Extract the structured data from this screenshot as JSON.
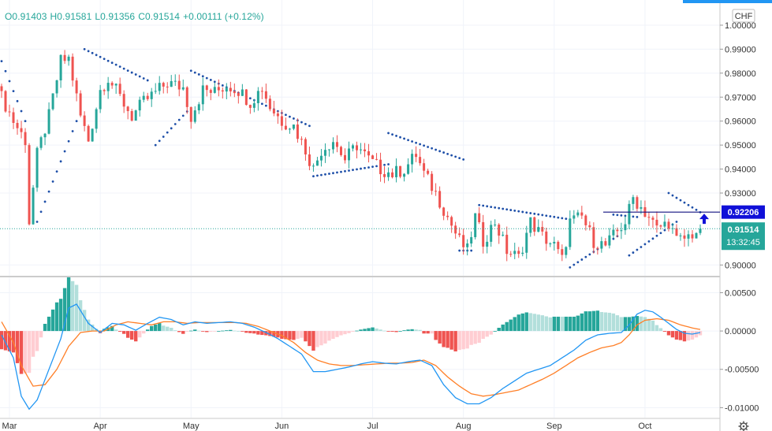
{
  "ohlc": {
    "open": "O0.91403",
    "high": "H0.91581",
    "low": "L0.91356",
    "close": "C0.91514",
    "change": "+0.00111 (+0.12%)"
  },
  "currency_label": "CHF",
  "price_labels": {
    "level_price": "0.92206",
    "last_price": "0.91514",
    "countdown": "13:32:45"
  },
  "colors": {
    "up": "#26a69a",
    "down": "#ef5350",
    "sar": "#1e4fa8",
    "level_badge": "#1010d8",
    "macd_line": "#2196f3",
    "signal_line": "#ff7f27",
    "hist_up_strong": "#26a69a",
    "hist_up_weak": "#b2dfdb",
    "hist_down_strong": "#ef5350",
    "hist_down_weak": "#ffcdd2",
    "toolbar_accent": "#2196f3"
  },
  "icons": {
    "settings": "gear-icon",
    "signal": "up-arrow-icon"
  },
  "chart_data": [
    {
      "type": "candlestick",
      "title": "",
      "ylim": [
        0.8955,
        1.0105
      ],
      "yticks": [
        "1.00000",
        "0.99000",
        "0.98000",
        "0.97000",
        "0.96000",
        "0.95000",
        "0.94000",
        "0.93000",
        "0.90000"
      ],
      "ytick_values": [
        1.0,
        0.99,
        0.98,
        0.97,
        0.96,
        0.95,
        0.94,
        0.93,
        0.9
      ],
      "xticks": [
        "Mar",
        "Apr",
        "May",
        "Jun",
        "Jul",
        "Aug",
        "Sep",
        "Oct"
      ],
      "xtick_bar_index": [
        2,
        25,
        48,
        71,
        94,
        117,
        140,
        163
      ],
      "bar_count": 178,
      "close_path": [
        [
          0,
          0.97
        ],
        [
          3,
          0.96
        ],
        [
          6,
          0.952
        ],
        [
          7,
          0.918
        ],
        [
          9,
          0.946
        ],
        [
          12,
          0.962
        ],
        [
          15,
          0.985
        ],
        [
          17,
          0.986
        ],
        [
          20,
          0.962
        ],
        [
          22,
          0.952
        ],
        [
          25,
          0.973
        ],
        [
          27,
          0.978
        ],
        [
          30,
          0.97
        ],
        [
          33,
          0.962
        ],
        [
          36,
          0.968
        ],
        [
          39,
          0.972
        ],
        [
          42,
          0.976
        ],
        [
          46,
          0.974
        ],
        [
          48,
          0.962
        ],
        [
          51,
          0.973
        ],
        [
          54,
          0.972
        ],
        [
          57,
          0.975
        ],
        [
          60,
          0.973
        ],
        [
          63,
          0.968
        ],
        [
          66,
          0.974
        ],
        [
          68,
          0.966
        ],
        [
          71,
          0.96
        ],
        [
          74,
          0.958
        ],
        [
          77,
          0.948
        ],
        [
          79,
          0.94
        ],
        [
          81,
          0.948
        ],
        [
          84,
          0.952
        ],
        [
          87,
          0.944
        ],
        [
          90,
          0.95
        ],
        [
          93,
          0.944
        ],
        [
          96,
          0.94
        ],
        [
          99,
          0.938
        ],
        [
          102,
          0.94
        ],
        [
          105,
          0.946
        ],
        [
          107,
          0.938
        ],
        [
          110,
          0.93
        ],
        [
          113,
          0.92
        ],
        [
          116,
          0.91
        ],
        [
          118,
          0.906
        ],
        [
          120,
          0.92
        ],
        [
          122,
          0.91
        ],
        [
          125,
          0.918
        ],
        [
          128,
          0.906
        ],
        [
          131,
          0.903
        ],
        [
          134,
          0.918
        ],
        [
          137,
          0.912
        ],
        [
          140,
          0.908
        ],
        [
          142,
          0.902
        ],
        [
          144,
          0.918
        ],
        [
          147,
          0.92
        ],
        [
          150,
          0.91
        ],
        [
          153,
          0.908
        ],
        [
          156,
          0.914
        ],
        [
          158,
          0.918
        ],
        [
          160,
          0.928
        ],
        [
          162,
          0.924
        ],
        [
          164,
          0.92
        ],
        [
          166,
          0.915
        ],
        [
          169,
          0.918
        ],
        [
          171,
          0.91
        ],
        [
          173,
          0.911
        ],
        [
          175,
          0.913
        ],
        [
          177,
          0.915
        ]
      ],
      "parabolic_sar": [
        {
          "start": 0,
          "end": 6,
          "from": 0.985,
          "to": 0.96
        },
        {
          "start": 9,
          "end": 19,
          "from": 0.918,
          "to": 0.96
        },
        {
          "start": 21,
          "end": 37,
          "from": 0.99,
          "to": 0.977
        },
        {
          "start": 39,
          "end": 47,
          "from": 0.95,
          "to": 0.964
        },
        {
          "start": 48,
          "end": 78,
          "from": 0.981,
          "to": 0.958
        },
        {
          "start": 79,
          "end": 98,
          "from": 0.937,
          "to": 0.942
        },
        {
          "start": 98,
          "end": 117,
          "from": 0.955,
          "to": 0.944
        },
        {
          "start": 116,
          "end": 119,
          "from": 0.906,
          "to": 0.906
        },
        {
          "start": 121,
          "end": 144,
          "from": 0.925,
          "to": 0.919
        },
        {
          "start": 144,
          "end": 156,
          "from": 0.899,
          "to": 0.912
        },
        {
          "start": 155,
          "end": 161,
          "from": 0.921,
          "to": 0.92
        },
        {
          "start": 159,
          "end": 171,
          "from": 0.904,
          "to": 0.918
        },
        {
          "start": 169,
          "end": 177,
          "from": 0.93,
          "to": 0.922
        }
      ],
      "horizontal_level": 0.92206,
      "last_price": 0.91514
    },
    {
      "type": "macd",
      "title": "",
      "ylim": [
        -0.0113,
        0.007
      ],
      "yticks": [
        "0.00500",
        "0.00000",
        "-0.00500",
        "-0.01000"
      ],
      "ytick_values": [
        0.005,
        0.0,
        -0.005,
        -0.01
      ],
      "macd_path": [
        [
          0,
          -0.0005
        ],
        [
          3,
          -0.0035
        ],
        [
          5,
          -0.0085
        ],
        [
          7,
          -0.0102
        ],
        [
          9,
          -0.009
        ],
        [
          12,
          -0.005
        ],
        [
          15,
          -0.001
        ],
        [
          17,
          0.003
        ],
        [
          19,
          0.0035
        ],
        [
          22,
          0.001
        ],
        [
          25,
          -0.0002
        ],
        [
          28,
          0.001
        ],
        [
          31,
          0.0008
        ],
        [
          34,
          0.0001
        ],
        [
          37,
          0.001
        ],
        [
          40,
          0.0018
        ],
        [
          43,
          0.0015
        ],
        [
          46,
          0.0008
        ],
        [
          49,
          0.0012
        ],
        [
          52,
          0.001
        ],
        [
          55,
          0.0011
        ],
        [
          58,
          0.0012
        ],
        [
          61,
          0.001
        ],
        [
          64,
          0.0005
        ],
        [
          67,
          -0.0002
        ],
        [
          70,
          -0.001
        ],
        [
          73,
          -0.002
        ],
        [
          76,
          -0.003
        ],
        [
          79,
          -0.0053
        ],
        [
          82,
          -0.0053
        ],
        [
          85,
          -0.005
        ],
        [
          88,
          -0.0047
        ],
        [
          91,
          -0.0043
        ],
        [
          94,
          -0.004
        ],
        [
          97,
          -0.0042
        ],
        [
          100,
          -0.0043
        ],
        [
          103,
          -0.004
        ],
        [
          106,
          -0.0038
        ],
        [
          109,
          -0.0045
        ],
        [
          112,
          -0.007
        ],
        [
          115,
          -0.0087
        ],
        [
          118,
          -0.0095
        ],
        [
          121,
          -0.0095
        ],
        [
          124,
          -0.0087
        ],
        [
          127,
          -0.0075
        ],
        [
          130,
          -0.0065
        ],
        [
          133,
          -0.0055
        ],
        [
          136,
          -0.005
        ],
        [
          139,
          -0.0045
        ],
        [
          142,
          -0.0035
        ],
        [
          145,
          -0.0025
        ],
        [
          148,
          -0.0012
        ],
        [
          151,
          -0.0005
        ],
        [
          154,
          -0.0003
        ],
        [
          157,
          -0.0002
        ],
        [
          159,
          0.0008
        ],
        [
          161,
          0.0022
        ],
        [
          163,
          0.0027
        ],
        [
          165,
          0.0025
        ],
        [
          167,
          0.0018
        ],
        [
          169,
          0.001
        ],
        [
          171,
          0.0002
        ],
        [
          173,
          -0.0003
        ],
        [
          175,
          -0.0004
        ],
        [
          177,
          -0.0002
        ]
      ],
      "signal_path": [
        [
          0,
          0.0012
        ],
        [
          3,
          -0.0015
        ],
        [
          5,
          -0.0045
        ],
        [
          8,
          -0.0072
        ],
        [
          11,
          -0.007
        ],
        [
          14,
          -0.005
        ],
        [
          17,
          -0.002
        ],
        [
          20,
          -0.0002
        ],
        [
          23,
          0.0
        ],
        [
          26,
          0.0
        ],
        [
          29,
          0.0008
        ],
        [
          32,
          0.0012
        ],
        [
          35,
          0.001
        ],
        [
          38,
          0.0008
        ],
        [
          41,
          0.0012
        ],
        [
          44,
          0.0012
        ],
        [
          47,
          0.001
        ],
        [
          50,
          0.0011
        ],
        [
          53,
          0.0011
        ],
        [
          56,
          0.0011
        ],
        [
          59,
          0.0011
        ],
        [
          62,
          0.001
        ],
        [
          65,
          0.0006
        ],
        [
          68,
          0.0
        ],
        [
          71,
          -0.0006
        ],
        [
          74,
          -0.0015
        ],
        [
          77,
          -0.0028
        ],
        [
          80,
          -0.0038
        ],
        [
          83,
          -0.0043
        ],
        [
          86,
          -0.0045
        ],
        [
          89,
          -0.0045
        ],
        [
          92,
          -0.0044
        ],
        [
          95,
          -0.0043
        ],
        [
          98,
          -0.0042
        ],
        [
          101,
          -0.0042
        ],
        [
          104,
          -0.0041
        ],
        [
          107,
          -0.0038
        ],
        [
          110,
          -0.0045
        ],
        [
          113,
          -0.006
        ],
        [
          116,
          -0.0072
        ],
        [
          119,
          -0.0082
        ],
        [
          122,
          -0.0085
        ],
        [
          125,
          -0.0083
        ],
        [
          128,
          -0.008
        ],
        [
          131,
          -0.0077
        ],
        [
          134,
          -0.007
        ],
        [
          137,
          -0.0063
        ],
        [
          140,
          -0.0055
        ],
        [
          143,
          -0.0045
        ],
        [
          146,
          -0.0035
        ],
        [
          149,
          -0.0028
        ],
        [
          152,
          -0.0022
        ],
        [
          155,
          -0.0019
        ],
        [
          157,
          -0.0015
        ],
        [
          159,
          -0.0005
        ],
        [
          161,
          0.0008
        ],
        [
          163,
          0.0014
        ],
        [
          166,
          0.0016
        ],
        [
          169,
          0.0014
        ],
        [
          172,
          0.0008
        ],
        [
          175,
          0.0004
        ],
        [
          177,
          0.0002
        ]
      ],
      "x_bar_count": 178
    }
  ]
}
